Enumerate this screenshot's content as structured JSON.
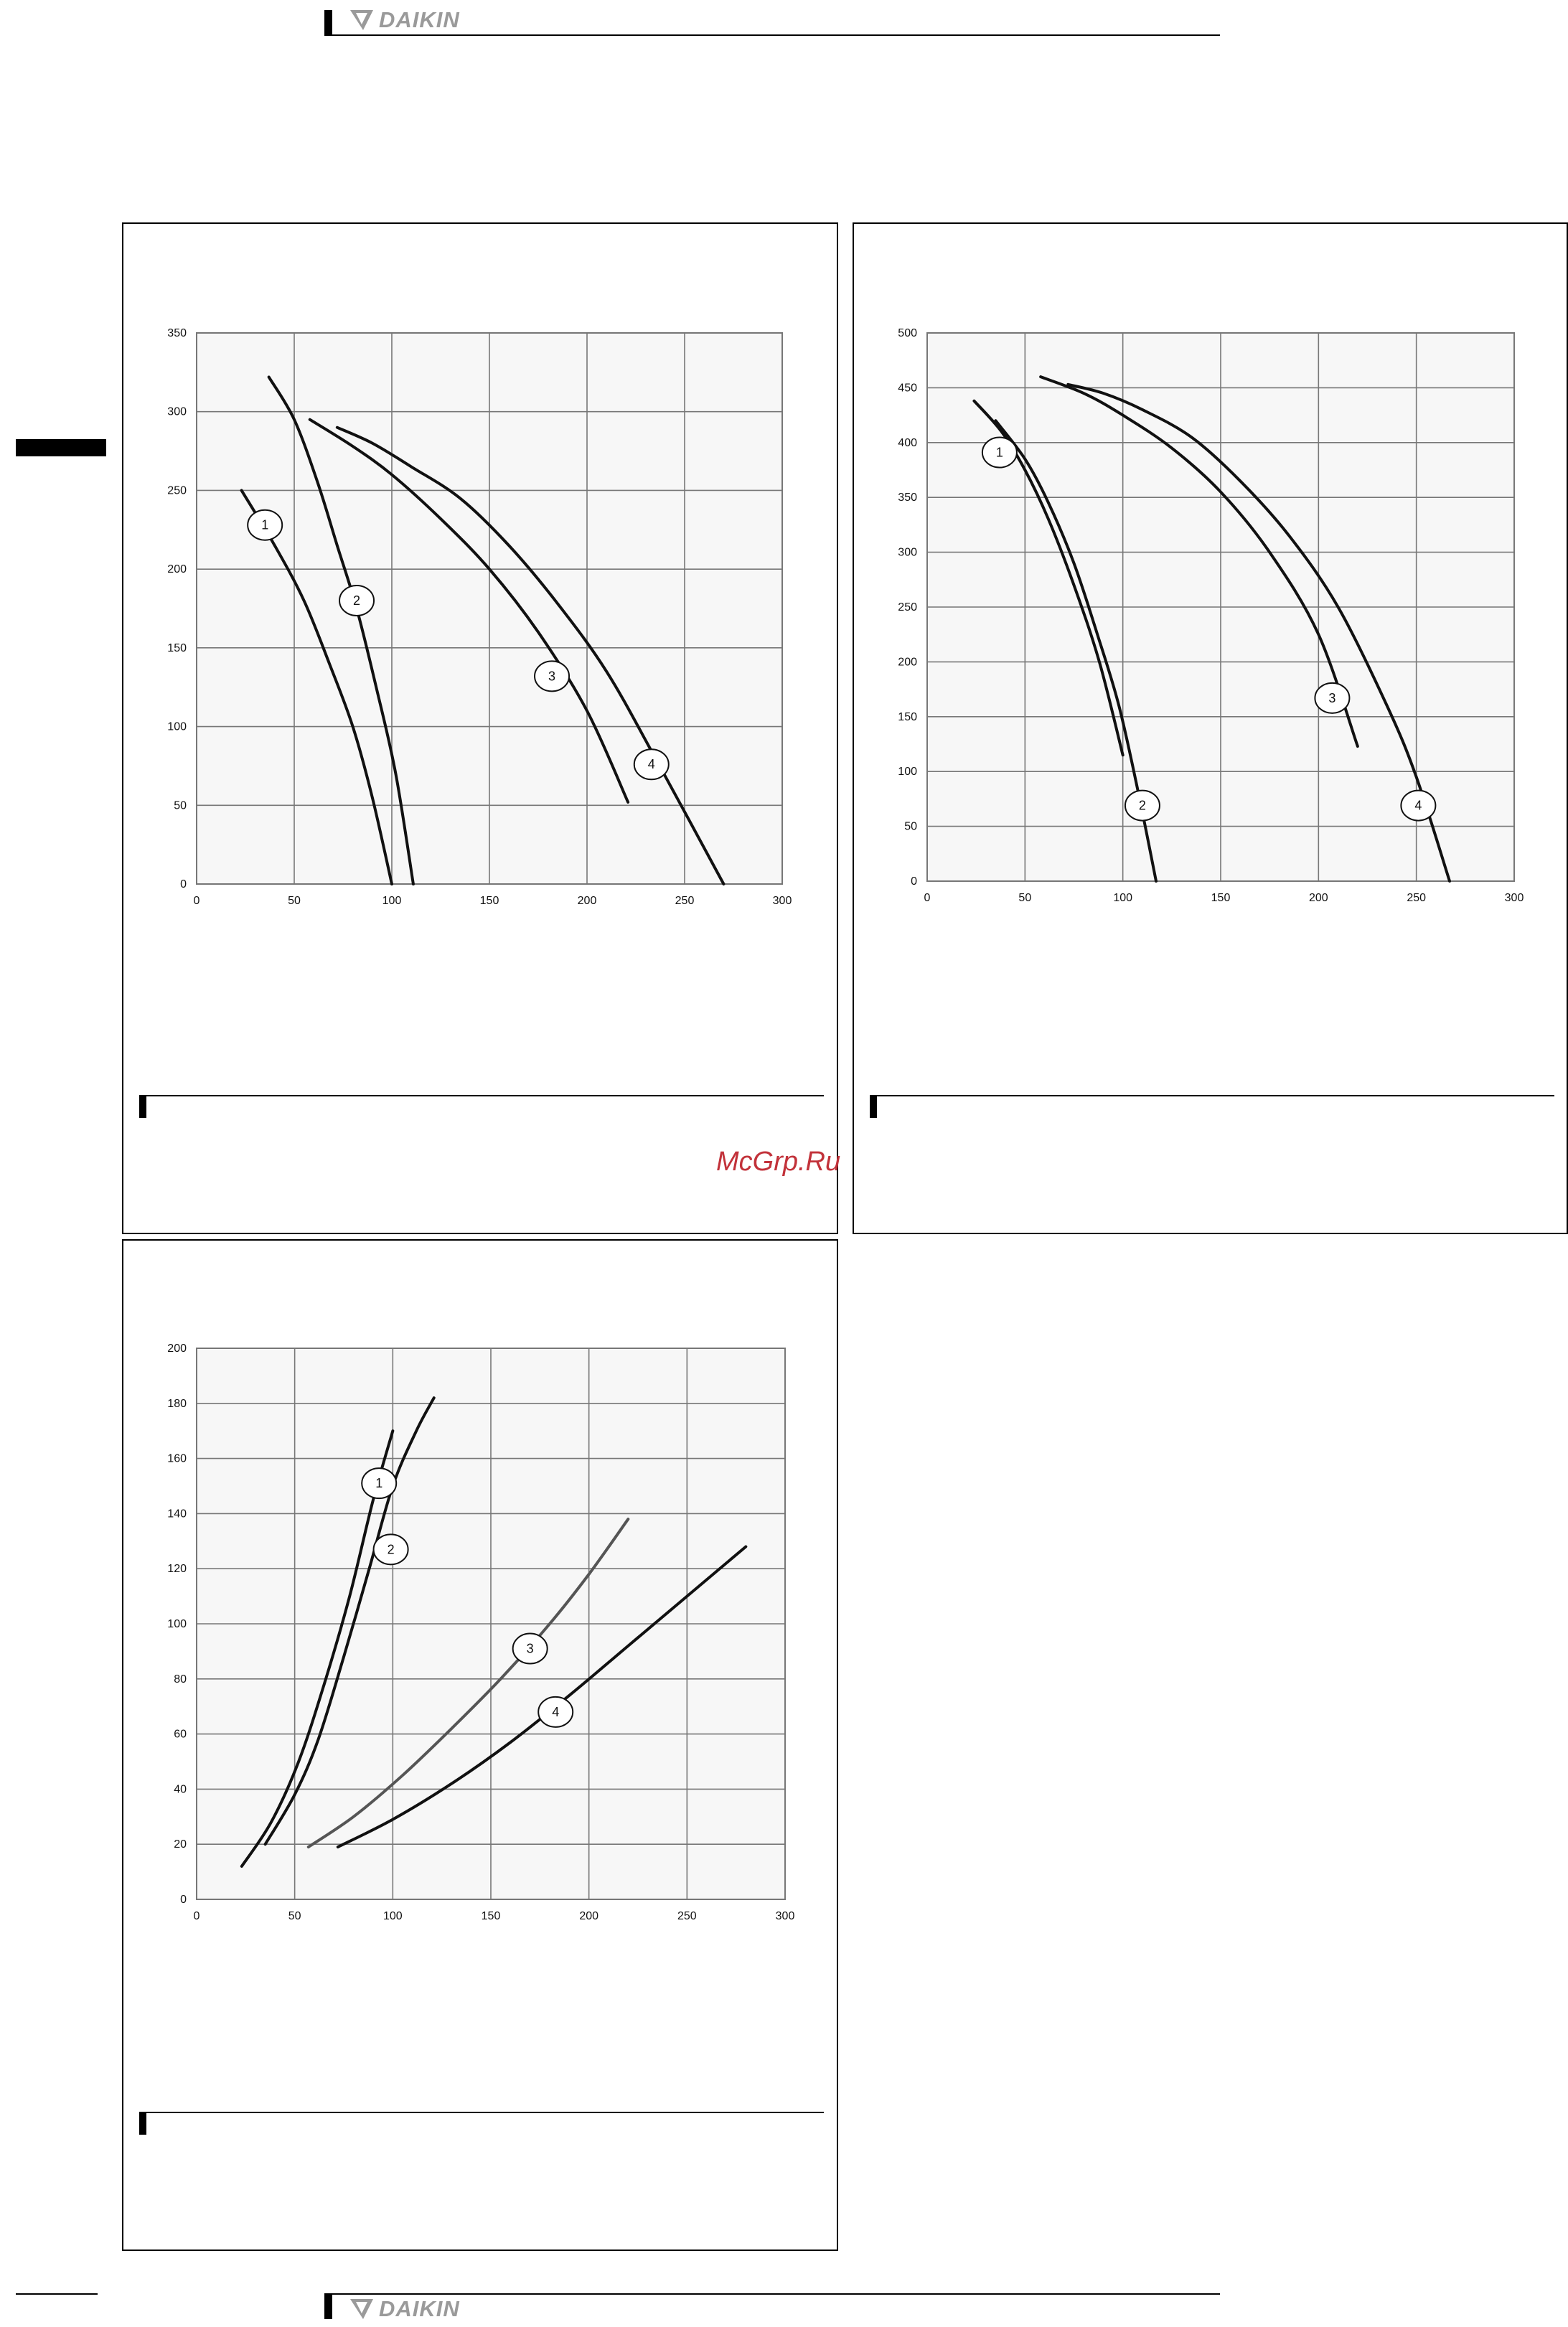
{
  "header": {
    "brand": "DAIKIN"
  },
  "footer": {
    "brand": "DAIKIN"
  },
  "watermark": "McGrp.Ru",
  "colors": {
    "curve": "#111111",
    "curve3_bottom": "#555555",
    "grid": "#777777",
    "watermark": "#c2323a",
    "logo": "#9a9a9a"
  },
  "chart_data": [
    {
      "type": "line",
      "xlim": [
        0,
        300
      ],
      "ylim": [
        0,
        350
      ],
      "xticks": [
        "0",
        "50",
        "100",
        "150",
        "200",
        "250",
        "300"
      ],
      "yticks": [
        "0",
        "50",
        "100",
        "150",
        "200",
        "250",
        "300",
        "350"
      ],
      "grid": true,
      "series": [
        {
          "name": "1",
          "points": [
            [
              23,
              250
            ],
            [
              40,
              215
            ],
            [
              55,
              180
            ],
            [
              68,
              140
            ],
            [
              80,
              100
            ],
            [
              90,
              55
            ],
            [
              100,
              0
            ]
          ]
        },
        {
          "name": "2",
          "points": [
            [
              37,
              322
            ],
            [
              50,
              295
            ],
            [
              62,
              255
            ],
            [
              72,
              215
            ],
            [
              82,
              175
            ],
            [
              92,
              125
            ],
            [
              102,
              70
            ],
            [
              111,
              0
            ]
          ]
        },
        {
          "name": "3",
          "points": [
            [
              58,
              295
            ],
            [
              80,
              278
            ],
            [
              100,
              260
            ],
            [
              125,
              232
            ],
            [
              150,
              200
            ],
            [
              175,
              160
            ],
            [
              200,
              110
            ],
            [
              221,
              52
            ]
          ]
        },
        {
          "name": "4",
          "points": [
            [
              72,
              290
            ],
            [
              90,
              280
            ],
            [
              110,
              265
            ],
            [
              135,
              245
            ],
            [
              160,
              215
            ],
            [
              185,
              178
            ],
            [
              210,
              135
            ],
            [
              235,
              80
            ],
            [
              270,
              0
            ]
          ]
        }
      ],
      "labels": [
        {
          "text": "1",
          "at": [
            35,
            228
          ]
        },
        {
          "text": "2",
          "at": [
            82,
            180
          ]
        },
        {
          "text": "3",
          "at": [
            182,
            132
          ]
        },
        {
          "text": "4",
          "at": [
            233,
            76
          ]
        }
      ]
    },
    {
      "type": "line",
      "xlim": [
        0,
        300
      ],
      "ylim": [
        0,
        500
      ],
      "xticks": [
        "0",
        "50",
        "100",
        "150",
        "200",
        "250",
        "300"
      ],
      "yticks": [
        "0",
        "50",
        "100",
        "150",
        "200",
        "250",
        "300",
        "350",
        "400",
        "450",
        "500"
      ],
      "grid": true,
      "series": [
        {
          "name": "1",
          "points": [
            [
              24,
              438
            ],
            [
              38,
              410
            ],
            [
              50,
              375
            ],
            [
              62,
              330
            ],
            [
              75,
              270
            ],
            [
              88,
              200
            ],
            [
              100,
              115
            ]
          ]
        },
        {
          "name": "2",
          "points": [
            [
              35,
              420
            ],
            [
              50,
              385
            ],
            [
              62,
              345
            ],
            [
              75,
              290
            ],
            [
              87,
              225
            ],
            [
              98,
              160
            ],
            [
              108,
              80
            ],
            [
              117,
              0
            ]
          ]
        },
        {
          "name": "3",
          "points": [
            [
              58,
              460
            ],
            [
              80,
              445
            ],
            [
              100,
              425
            ],
            [
              125,
              395
            ],
            [
              150,
              355
            ],
            [
              175,
              300
            ],
            [
              200,
              225
            ],
            [
              220,
              123
            ]
          ]
        },
        {
          "name": "4",
          "points": [
            [
              72,
              453
            ],
            [
              90,
              445
            ],
            [
              110,
              430
            ],
            [
              135,
              405
            ],
            [
              160,
              365
            ],
            [
              185,
              315
            ],
            [
              210,
              250
            ],
            [
              235,
              160
            ],
            [
              250,
              95
            ],
            [
              267,
              0
            ]
          ]
        }
      ],
      "labels": [
        {
          "text": "1",
          "at": [
            37,
            391
          ]
        },
        {
          "text": "2",
          "at": [
            110,
            69
          ]
        },
        {
          "text": "3",
          "at": [
            207,
            167
          ]
        },
        {
          "text": "4",
          "at": [
            251,
            69
          ]
        }
      ]
    },
    {
      "type": "line",
      "xlim": [
        0,
        300
      ],
      "ylim": [
        0,
        200
      ],
      "xticks": [
        "0",
        "50",
        "100",
        "150",
        "200",
        "250",
        "300"
      ],
      "yticks": [
        "0",
        "20",
        "40",
        "60",
        "80",
        "100",
        "120",
        "140",
        "160",
        "180",
        "200"
      ],
      "grid": true,
      "series": [
        {
          "name": "1",
          "points": [
            [
              23,
              12
            ],
            [
              38,
              28
            ],
            [
              52,
              50
            ],
            [
              65,
              78
            ],
            [
              78,
              110
            ],
            [
              90,
              145
            ],
            [
              100,
              170
            ]
          ]
        },
        {
          "name": "2",
          "points": [
            [
              35,
              20
            ],
            [
              50,
              38
            ],
            [
              62,
              58
            ],
            [
              75,
              88
            ],
            [
              88,
              120
            ],
            [
              100,
              150
            ],
            [
              112,
              170
            ],
            [
              121,
              182
            ]
          ]
        },
        {
          "name": "3",
          "points": [
            [
              57,
              19
            ],
            [
              80,
              30
            ],
            [
              105,
              45
            ],
            [
              130,
              62
            ],
            [
              155,
              80
            ],
            [
              180,
              100
            ],
            [
              200,
              118
            ],
            [
              220,
              138
            ]
          ]
        },
        {
          "name": "4",
          "points": [
            [
              72,
              19
            ],
            [
              100,
              29
            ],
            [
              130,
              42
            ],
            [
              160,
              57
            ],
            [
              190,
              74
            ],
            [
              220,
              92
            ],
            [
              250,
              110
            ],
            [
              280,
              128
            ]
          ]
        }
      ],
      "labels": [
        {
          "text": "1",
          "at": [
            93,
            151
          ]
        },
        {
          "text": "2",
          "at": [
            99,
            127
          ]
        },
        {
          "text": "3",
          "at": [
            170,
            91
          ]
        },
        {
          "text": "4",
          "at": [
            183,
            68
          ]
        }
      ]
    }
  ]
}
